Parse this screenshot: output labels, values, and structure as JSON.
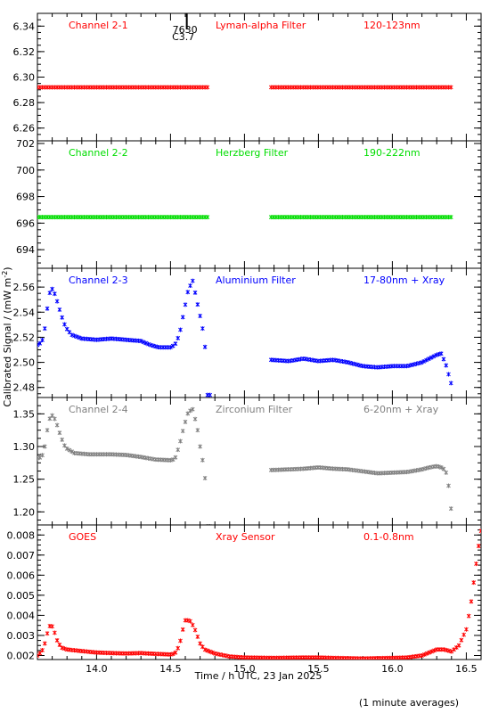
{
  "colors": {
    "red": "#ff0000",
    "green": "#00dd00",
    "blue": "#0000ff",
    "grey": "#808080",
    "axis": "#000000"
  },
  "figure": {
    "xlabel": "Time / h UTC, 23 Jan 2025",
    "ylabel": "Calibrated Signal / (mW m",
    "ylabel_sup": "-2",
    "ylabel_end": ")",
    "footnote": "(1 minute averages)",
    "flare_marker": {
      "time": 14.61,
      "class_label": "C3.7",
      "region_label": "7630"
    }
  },
  "chart_data": [
    {
      "type": "scatter",
      "channel": "Channel 2-1",
      "filter": "Lyman-alpha Filter",
      "band": "120-123nm",
      "color": "red",
      "xlim": [
        13.6,
        16.6
      ],
      "ylim": [
        6.25,
        6.35
      ],
      "yticks": [
        6.26,
        6.28,
        6.3,
        6.32,
        6.34
      ],
      "ytick_labels": [
        "6.26",
        "6.28",
        "6.30",
        "6.32",
        "6.34"
      ],
      "segments": [
        {
          "x_start": 13.6,
          "x_end": 14.75,
          "pts": [
            [
              0,
              6.292
            ],
            [
              1,
              6.292
            ]
          ]
        },
        {
          "x_start": 15.18,
          "x_end": 16.4,
          "pts": [
            [
              0,
              6.292
            ],
            [
              1,
              6.292
            ]
          ]
        }
      ]
    },
    {
      "type": "scatter",
      "channel": "Channel 2-2",
      "filter": "Herzberg Filter",
      "band": "190-222nm",
      "color": "green",
      "xlim": [
        13.6,
        16.6
      ],
      "ylim": [
        692.6,
        702.2
      ],
      "yticks": [
        694,
        696,
        698,
        700,
        702
      ],
      "ytick_labels": [
        "694",
        "696",
        "698",
        "700",
        "702"
      ],
      "segments": [
        {
          "x_start": 13.6,
          "x_end": 14.75,
          "pts": [
            [
              0,
              696.45
            ],
            [
              1,
              696.45
            ]
          ]
        },
        {
          "x_start": 15.18,
          "x_end": 16.4,
          "pts": [
            [
              0,
              696.45
            ],
            [
              1,
              696.45
            ]
          ]
        }
      ]
    },
    {
      "type": "scatter",
      "channel": "Channel 2-3",
      "filter": "Aluminium Filter",
      "band": "17-80nm + Xray",
      "color": "blue",
      "xlim": [
        13.6,
        16.6
      ],
      "ylim": [
        2.472,
        2.575
      ],
      "yticks": [
        2.48,
        2.5,
        2.52,
        2.54,
        2.56
      ],
      "ytick_labels": [
        "2.48",
        "2.50",
        "2.52",
        "2.54",
        "2.56"
      ],
      "segments": [
        {
          "x_start": 13.6,
          "x_end": 14.76,
          "pts": [
            [
              13.6,
              2.514
            ],
            [
              13.63,
              2.516
            ],
            [
              13.65,
              2.527
            ],
            [
              13.67,
              2.546
            ],
            [
              13.69,
              2.56
            ],
            [
              13.71,
              2.557
            ],
            [
              13.73,
              2.55
            ],
            [
              13.76,
              2.538
            ],
            [
              13.79,
              2.528
            ],
            [
              13.83,
              2.522
            ],
            [
              13.9,
              2.519
            ],
            [
              14.0,
              2.518
            ],
            [
              14.1,
              2.519
            ],
            [
              14.2,
              2.518
            ],
            [
              14.3,
              2.517
            ],
            [
              14.36,
              2.514
            ],
            [
              14.42,
              2.512
            ],
            [
              14.5,
              2.512
            ],
            [
              14.53,
              2.514
            ],
            [
              14.56,
              2.522
            ],
            [
              14.59,
              2.54
            ],
            [
              14.62,
              2.558
            ],
            [
              14.65,
              2.565
            ],
            [
              14.68,
              2.548
            ],
            [
              14.7,
              2.537
            ],
            [
              14.72,
              2.525
            ],
            [
              14.74,
              2.506
            ],
            [
              14.75,
              2.474
            ]
          ]
        },
        {
          "x_start": 15.18,
          "x_end": 16.4,
          "pts": [
            [
              15.18,
              2.502
            ],
            [
              15.3,
              2.501
            ],
            [
              15.4,
              2.503
            ],
            [
              15.5,
              2.501
            ],
            [
              15.6,
              2.502
            ],
            [
              15.7,
              2.5
            ],
            [
              15.8,
              2.497
            ],
            [
              15.9,
              2.496
            ],
            [
              16.0,
              2.497
            ],
            [
              16.1,
              2.497
            ],
            [
              16.2,
              2.5
            ],
            [
              16.25,
              2.503
            ],
            [
              16.3,
              2.506
            ],
            [
              16.33,
              2.507
            ],
            [
              16.36,
              2.499
            ],
            [
              16.4,
              2.482
            ]
          ]
        }
      ]
    },
    {
      "type": "scatter",
      "channel": "Channel 2-4",
      "filter": "Zirconium Filter",
      "band": "6-20nm + Xray",
      "color": "grey",
      "xlim": [
        13.6,
        16.6
      ],
      "ylim": [
        1.18,
        1.375
      ],
      "yticks": [
        1.2,
        1.25,
        1.3,
        1.35
      ],
      "ytick_labels": [
        "1.20",
        "1.25",
        "1.30",
        "1.35"
      ],
      "segments": [
        {
          "x_start": 13.6,
          "x_end": 14.76,
          "pts": [
            [
              13.6,
              1.282
            ],
            [
              13.63,
              1.284
            ],
            [
              13.65,
              1.3
            ],
            [
              13.67,
              1.33
            ],
            [
              13.69,
              1.349
            ],
            [
              13.71,
              1.346
            ],
            [
              13.73,
              1.335
            ],
            [
              13.76,
              1.314
            ],
            [
              13.79,
              1.298
            ],
            [
              13.85,
              1.29
            ],
            [
              13.95,
              1.288
            ],
            [
              14.1,
              1.288
            ],
            [
              14.2,
              1.287
            ],
            [
              14.3,
              1.284
            ],
            [
              14.4,
              1.28
            ],
            [
              14.5,
              1.279
            ],
            [
              14.53,
              1.281
            ],
            [
              14.56,
              1.302
            ],
            [
              14.59,
              1.33
            ],
            [
              14.62,
              1.353
            ],
            [
              14.65,
              1.357
            ],
            [
              14.68,
              1.33
            ],
            [
              14.7,
              1.3
            ],
            [
              14.72,
              1.275
            ],
            [
              14.74,
              1.24
            ],
            [
              14.75,
              1.178
            ]
          ]
        },
        {
          "x_start": 15.18,
          "x_end": 16.4,
          "pts": [
            [
              15.18,
              1.264
            ],
            [
              15.3,
              1.265
            ],
            [
              15.4,
              1.266
            ],
            [
              15.5,
              1.268
            ],
            [
              15.6,
              1.266
            ],
            [
              15.7,
              1.265
            ],
            [
              15.8,
              1.262
            ],
            [
              15.9,
              1.259
            ],
            [
              16.0,
              1.26
            ],
            [
              16.1,
              1.261
            ],
            [
              16.2,
              1.265
            ],
            [
              16.25,
              1.268
            ],
            [
              16.3,
              1.27
            ],
            [
              16.33,
              1.268
            ],
            [
              16.36,
              1.264
            ],
            [
              16.38,
              1.24
            ],
            [
              16.4,
              1.198
            ]
          ]
        }
      ]
    },
    {
      "type": "scatter",
      "channel": "GOES",
      "filter": "Xray Sensor",
      "band": "0.1-0.8nm",
      "color": "red",
      "xlim": [
        13.6,
        16.6
      ],
      "ylim": [
        0.0018,
        0.0085
      ],
      "yticks": [
        0.002,
        0.003,
        0.004,
        0.005,
        0.006,
        0.007,
        0.008
      ],
      "ytick_labels": [
        "0.002",
        "0.003",
        "0.004",
        "0.005",
        "0.006",
        "0.007",
        "0.008"
      ],
      "xticks": [
        14.0,
        14.5,
        15.0,
        15.5,
        16.0,
        16.5
      ],
      "xtick_labels": [
        "14.0",
        "14.5",
        "15.0",
        "15.5",
        "16.0",
        "16.5"
      ],
      "segments": [
        {
          "x_start": 13.6,
          "x_end": 16.6,
          "pts": [
            [
              13.6,
              0.002
            ],
            [
              13.63,
              0.0022
            ],
            [
              13.65,
              0.0026
            ],
            [
              13.67,
              0.0032
            ],
            [
              13.69,
              0.0036
            ],
            [
              13.71,
              0.0033
            ],
            [
              13.73,
              0.0028
            ],
            [
              13.76,
              0.0024
            ],
            [
              13.8,
              0.0023
            ],
            [
              13.9,
              0.00222
            ],
            [
              14.0,
              0.00215
            ],
            [
              14.1,
              0.00212
            ],
            [
              14.2,
              0.0021
            ],
            [
              14.3,
              0.00212
            ],
            [
              14.4,
              0.00208
            ],
            [
              14.5,
              0.00205
            ],
            [
              14.53,
              0.0021
            ],
            [
              14.56,
              0.0025
            ],
            [
              14.58,
              0.0032
            ],
            [
              14.6,
              0.00375
            ],
            [
              14.63,
              0.00375
            ],
            [
              14.66,
              0.0034
            ],
            [
              14.68,
              0.003
            ],
            [
              14.7,
              0.0026
            ],
            [
              14.73,
              0.0023
            ],
            [
              14.8,
              0.0021
            ],
            [
              14.9,
              0.00195
            ],
            [
              15.0,
              0.0019
            ],
            [
              15.2,
              0.00188
            ],
            [
              15.4,
              0.0019
            ],
            [
              15.5,
              0.0019
            ],
            [
              15.6,
              0.00188
            ],
            [
              15.8,
              0.00185
            ],
            [
              16.0,
              0.00188
            ],
            [
              16.1,
              0.0019
            ],
            [
              16.2,
              0.002
            ],
            [
              16.3,
              0.0023
            ],
            [
              16.35,
              0.0023
            ],
            [
              16.4,
              0.0022
            ],
            [
              16.45,
              0.0025
            ],
            [
              16.5,
              0.0033
            ],
            [
              16.53,
              0.0045
            ],
            [
              16.56,
              0.0062
            ],
            [
              16.58,
              0.0073
            ],
            [
              16.6,
              0.0082
            ]
          ]
        }
      ]
    }
  ]
}
